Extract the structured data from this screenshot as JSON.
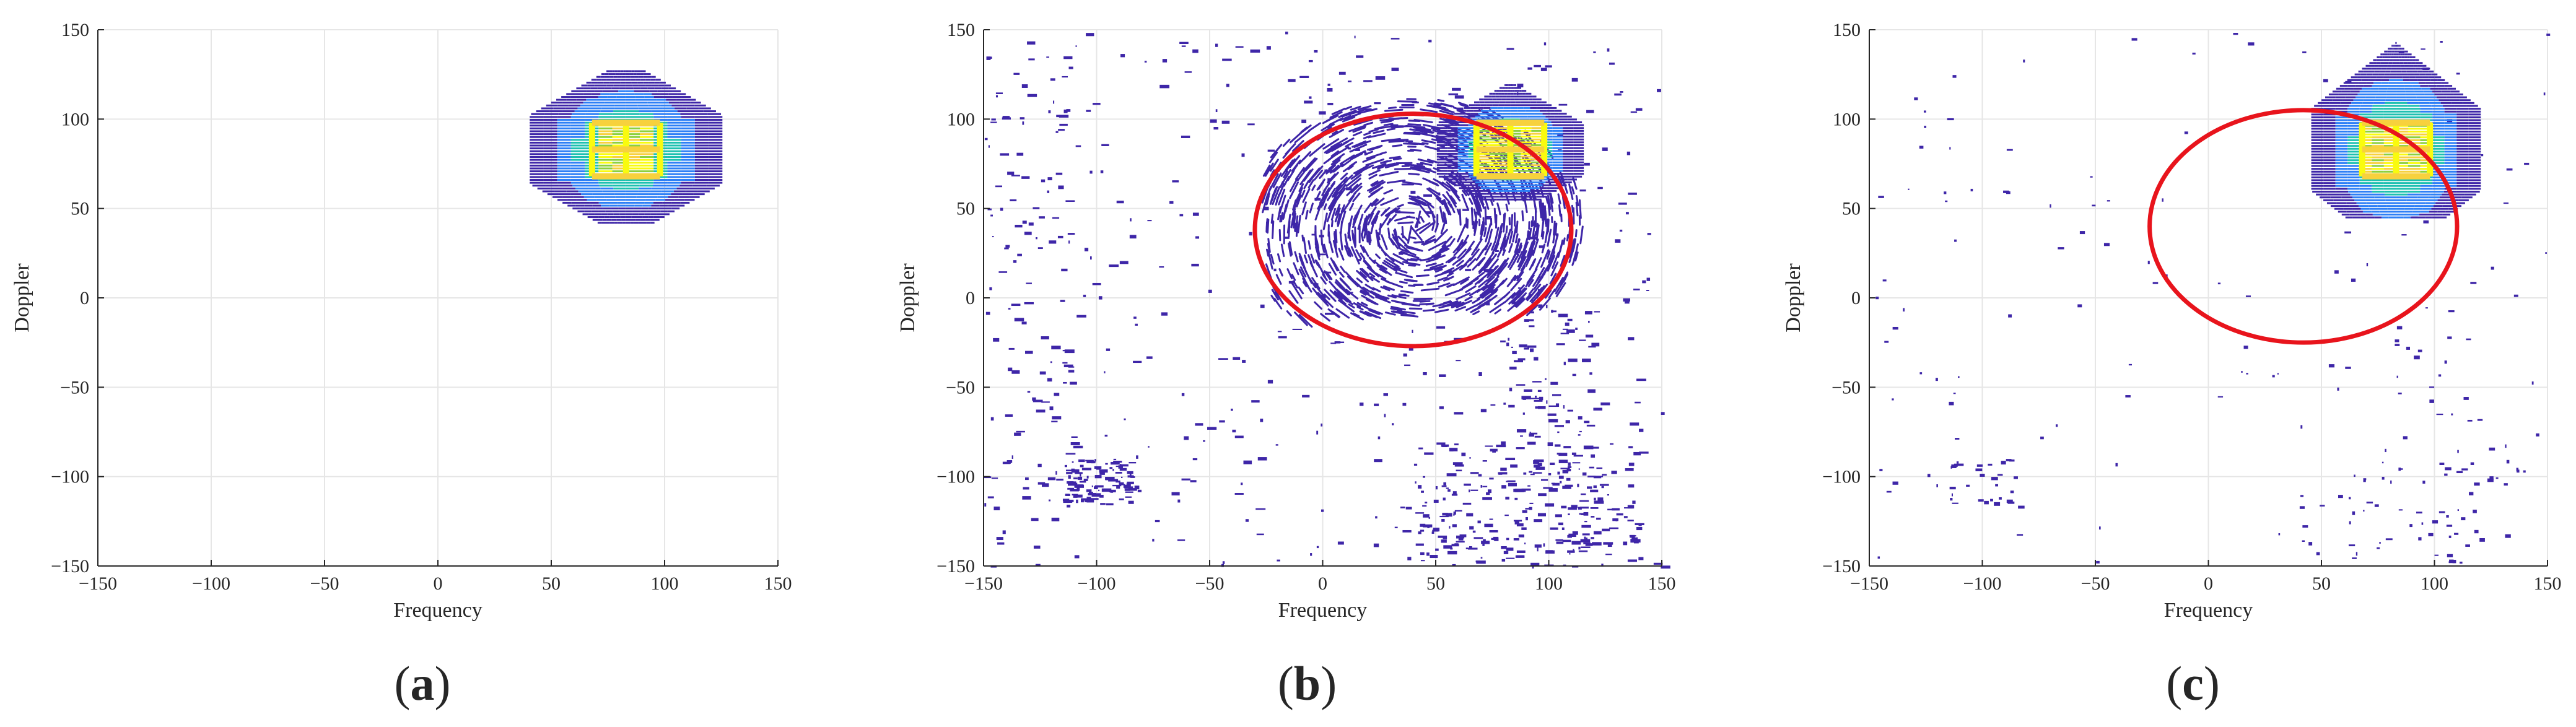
{
  "figure": {
    "panels": [
      {
        "label_open": "(",
        "label_letter": "a",
        "label_close": ")"
      },
      {
        "label_open": "(",
        "label_letter": "b",
        "label_close": ")"
      },
      {
        "label_open": "(",
        "label_letter": "c",
        "label_close": ")"
      }
    ]
  },
  "chart_data": [
    {
      "type": "heatmap",
      "panel": "a",
      "title": "",
      "xlabel": "Frequency",
      "ylabel": "Doppler",
      "xlim": [
        -150,
        150
      ],
      "ylim": [
        -150,
        150
      ],
      "xticks": [
        -150,
        -100,
        -50,
        0,
        50,
        100,
        150
      ],
      "yticks": [
        -150,
        -100,
        -50,
        0,
        50,
        100,
        150
      ],
      "grid": true,
      "colormap": [
        "#3e26a8",
        "#2d7ff6",
        "#1ec0b0",
        "#8dd03c",
        "#f7d13d",
        "#f9fb0e"
      ],
      "main_lobe": {
        "x_range": [
          40,
          125
        ],
        "y_range": [
          42,
          128
        ],
        "peak_x": [
          68,
          98
        ],
        "peak_y": [
          68,
          98
        ]
      },
      "clutter": "none",
      "annotation_ellipse": null
    },
    {
      "type": "heatmap",
      "panel": "b",
      "title": "",
      "xlabel": "Frequency",
      "ylabel": "Doppler",
      "xlim": [
        -150,
        150
      ],
      "ylim": [
        -150,
        150
      ],
      "xticks": [
        -150,
        -100,
        -50,
        0,
        50,
        100,
        150
      ],
      "yticks": [
        -150,
        -100,
        -50,
        0,
        50,
        100,
        150
      ],
      "grid": true,
      "colormap": [
        "#3e26a8",
        "#2d7ff6",
        "#1ec0b0",
        "#8dd03c",
        "#f7d13d",
        "#f9fb0e"
      ],
      "main_lobe": {
        "x_range": [
          55,
          120
        ],
        "y_range": [
          55,
          120
        ],
        "peak_x": [
          68,
          98
        ],
        "peak_y": [
          68,
          98
        ]
      },
      "spread_region": {
        "x_range": [
          -25,
          150
        ],
        "y_range": [
          -10,
          148
        ]
      },
      "clutter": "heavy",
      "annotation_ellipse": {
        "center": [
          40,
          38
        ],
        "radius": [
          70,
          65
        ],
        "color": "#e8141c"
      }
    },
    {
      "type": "heatmap",
      "panel": "c",
      "title": "",
      "xlabel": "Frequency",
      "ylabel": "Doppler",
      "xlim": [
        -150,
        150
      ],
      "ylim": [
        -150,
        150
      ],
      "xticks": [
        -150,
        -100,
        -50,
        0,
        50,
        100,
        150
      ],
      "yticks": [
        -150,
        -100,
        -50,
        0,
        50,
        100,
        150
      ],
      "grid": true,
      "colormap": [
        "#3e26a8",
        "#2d7ff6",
        "#1ec0b0",
        "#8dd03c",
        "#f7d13d",
        "#f9fb0e"
      ],
      "main_lobe": {
        "x_range": [
          55,
          130
        ],
        "y_range": [
          45,
          148
        ],
        "peak_x": [
          68,
          98
        ],
        "peak_y": [
          68,
          98
        ]
      },
      "clutter": "light",
      "annotation_ellipse": {
        "center": [
          42,
          40
        ],
        "radius": [
          68,
          65
        ],
        "color": "#e8141c"
      }
    }
  ]
}
